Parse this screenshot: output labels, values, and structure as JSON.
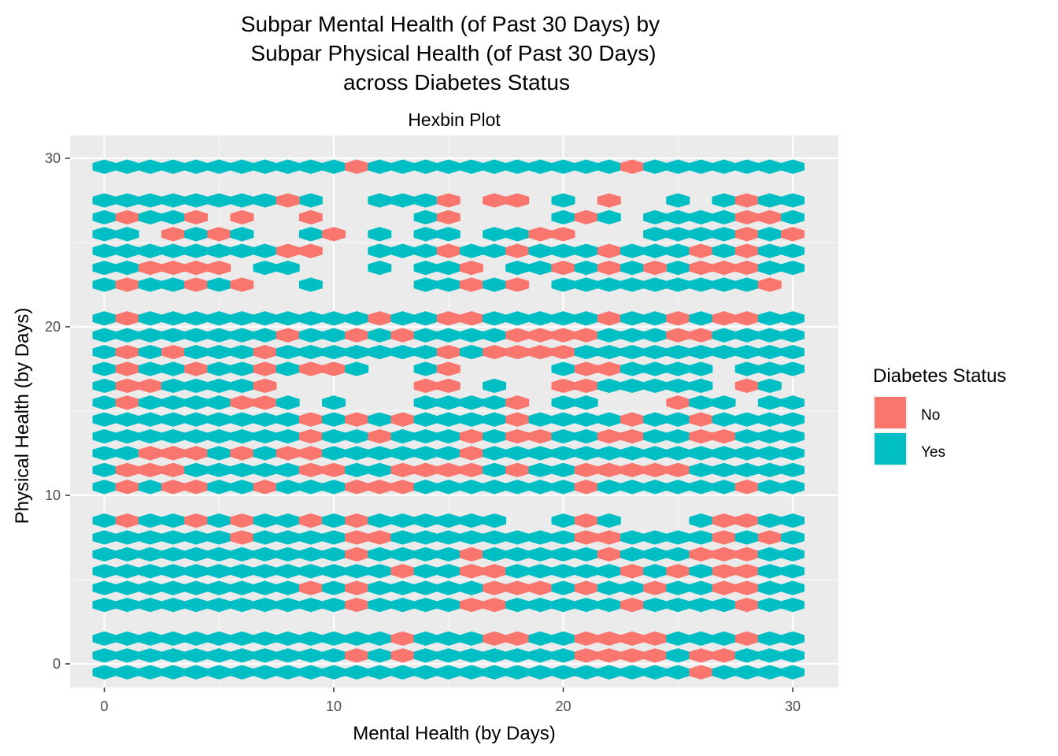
{
  "chart_data": {
    "type": "hexbin",
    "title": [
      "Subpar Mental Health (of Past 30 Days) by",
      "Subpar Physical Health (of Past 30 Days)",
      "across Diabetes Status"
    ],
    "subtitle": "Hexbin Plot",
    "xlabel": "Mental Health (by Days)",
    "ylabel": "Physical Health (by Days)",
    "xlim": [
      -1.5,
      31.5
    ],
    "ylim": [
      -1.5,
      31.5
    ],
    "x_ticks": [
      0,
      10,
      20,
      30
    ],
    "y_ticks": [
      0,
      10,
      20,
      30
    ],
    "grid": true,
    "hex_width": 1.0,
    "legend": {
      "title": "Diabetes Status",
      "position": "right",
      "entries": [
        {
          "label": "No",
          "color": "#F8766D"
        },
        {
          "label": "Yes",
          "color": "#00BFC4"
        }
      ]
    },
    "series": [
      {
        "name": "No",
        "color": "#F8766D"
      },
      {
        "name": "Yes",
        "color": "#00BFC4"
      }
    ],
    "cells": [
      {
        "y": 29.5,
        "yes": [
          [
            0,
            30
          ]
        ],
        "no": [
          11,
          23
        ]
      },
      {
        "y": 27.5,
        "yes": [
          [
            0,
            7
          ],
          [
            9,
            9
          ],
          [
            12,
            15
          ],
          [
            18,
            18
          ],
          [
            20,
            20
          ],
          [
            25,
            25
          ],
          [
            27,
            30
          ]
        ],
        "no": [
          8,
          15,
          17,
          18,
          22,
          28
        ]
      },
      {
        "y": 26.5,
        "yes": [
          [
            0,
            4
          ],
          [
            6,
            6
          ],
          [
            9,
            9
          ],
          [
            14,
            15
          ],
          [
            20,
            22
          ],
          [
            24,
            26
          ],
          [
            27,
            30
          ]
        ],
        "no": [
          1,
          4,
          6,
          9,
          15,
          21,
          28,
          29
        ]
      },
      {
        "y": 25.5,
        "yes": [
          [
            0,
            1
          ],
          [
            3,
            6
          ],
          [
            9,
            9
          ],
          [
            12,
            12
          ],
          [
            14,
            15
          ],
          [
            17,
            19
          ],
          [
            20,
            20
          ],
          [
            24,
            26
          ],
          [
            27,
            30
          ]
        ],
        "no": [
          3,
          5,
          10,
          19,
          20,
          28,
          30
        ]
      },
      {
        "y": 24.5,
        "yes": [
          [
            0,
            8
          ],
          [
            12,
            13
          ],
          [
            14,
            16
          ],
          [
            17,
            21
          ],
          [
            22,
            24
          ],
          [
            25,
            27
          ],
          [
            28,
            30
          ]
        ],
        "no": [
          8,
          9,
          15,
          18,
          22,
          26,
          28
        ]
      },
      {
        "y": 23.5,
        "yes": [
          [
            0,
            5
          ],
          [
            7,
            8
          ],
          [
            12,
            12
          ],
          [
            14,
            16
          ],
          [
            18,
            20
          ],
          [
            21,
            23
          ],
          [
            25,
            26
          ],
          [
            27,
            30
          ]
        ],
        "no": [
          2,
          3,
          4,
          5,
          16,
          20,
          22,
          24,
          26,
          27,
          28
        ]
      },
      {
        "y": 22.5,
        "yes": [
          [
            0,
            5
          ],
          [
            9,
            9
          ],
          [
            14,
            18
          ],
          [
            20,
            27
          ],
          [
            28,
            29
          ]
        ],
        "no": [
          1,
          4,
          6,
          16,
          18,
          29
        ]
      },
      {
        "y": 20.5,
        "yes": [
          [
            0,
            30
          ]
        ],
        "no": [
          1,
          12,
          15,
          16,
          22,
          25,
          27,
          28
        ]
      },
      {
        "y": 19.5,
        "yes": [
          [
            0,
            30
          ]
        ],
        "no": [
          8,
          11,
          13,
          18,
          19,
          20,
          21,
          25,
          26
        ]
      },
      {
        "y": 18.5,
        "yes": [
          [
            0,
            27
          ],
          [
            28,
            30
          ]
        ],
        "no": [
          1,
          3,
          7,
          15,
          17,
          18,
          19,
          20
        ]
      },
      {
        "y": 17.5,
        "yes": [
          [
            0,
            11
          ],
          [
            14,
            15
          ],
          [
            20,
            24
          ],
          [
            25,
            26
          ],
          [
            28,
            30
          ]
        ],
        "no": [
          1,
          4,
          7,
          9,
          10,
          15,
          21,
          22
        ]
      },
      {
        "y": 16.5,
        "yes": [
          [
            0,
            7
          ],
          [
            14,
            15
          ],
          [
            17,
            17
          ],
          [
            20,
            24
          ],
          [
            25,
            26
          ],
          [
            28,
            29
          ]
        ],
        "no": [
          1,
          2,
          7,
          14,
          15,
          20,
          21,
          28
        ]
      },
      {
        "y": 15.5,
        "yes": [
          [
            0,
            8
          ],
          [
            10,
            10
          ],
          [
            14,
            17
          ],
          [
            20,
            21
          ],
          [
            25,
            27
          ],
          [
            29,
            30
          ]
        ],
        "no": [
          1,
          6,
          7,
          18,
          25
        ]
      },
      {
        "y": 14.5,
        "yes": [
          [
            0,
            30
          ]
        ],
        "no": [
          9,
          11,
          13,
          18,
          23,
          26
        ]
      },
      {
        "y": 13.5,
        "yes": [
          [
            0,
            30
          ]
        ],
        "no": [
          9,
          12,
          16,
          18,
          19,
          22,
          23,
          26,
          27
        ]
      },
      {
        "y": 12.5,
        "yes": [
          [
            0,
            30
          ]
        ],
        "no": [
          2,
          3,
          4,
          6,
          8,
          9,
          16
        ]
      },
      {
        "y": 11.5,
        "yes": [
          [
            0,
            30
          ]
        ],
        "no": [
          1,
          2,
          3,
          9,
          10,
          13,
          14,
          15,
          16,
          18,
          21,
          22,
          23,
          24,
          25
        ]
      },
      {
        "y": 10.5,
        "yes": [
          [
            0,
            30
          ]
        ],
        "no": [
          1,
          3,
          4,
          7,
          11,
          12,
          13,
          21,
          28
        ]
      },
      {
        "y": 8.5,
        "yes": [
          [
            0,
            17
          ],
          [
            20,
            22
          ],
          [
            26,
            30
          ]
        ],
        "no": [
          1,
          4,
          6,
          9,
          11,
          21,
          27,
          28
        ]
      },
      {
        "y": 7.5,
        "yes": [
          [
            0,
            30
          ]
        ],
        "no": [
          6,
          11,
          12,
          21,
          22,
          27,
          29
        ]
      },
      {
        "y": 6.5,
        "yes": [
          [
            0,
            30
          ]
        ],
        "no": [
          11,
          16,
          22,
          26,
          27,
          28
        ]
      },
      {
        "y": 5.5,
        "yes": [
          [
            0,
            30
          ]
        ],
        "no": [
          13,
          16,
          17,
          23,
          25,
          27,
          28
        ]
      },
      {
        "y": 4.5,
        "yes": [
          [
            0,
            30
          ]
        ],
        "no": [
          9,
          11,
          17,
          18,
          19,
          21,
          24,
          27,
          28
        ]
      },
      {
        "y": 3.5,
        "yes": [
          [
            0,
            30
          ]
        ],
        "no": [
          11,
          16,
          17,
          23,
          28
        ]
      },
      {
        "y": 1.5,
        "yes": [
          [
            0,
            30
          ]
        ],
        "no": [
          13,
          17,
          18,
          21,
          22,
          23,
          24,
          28
        ]
      },
      {
        "y": 0.5,
        "yes": [
          [
            0,
            30
          ]
        ],
        "no": [
          11,
          13,
          21,
          22,
          23,
          24,
          26,
          27
        ]
      },
      {
        "y": -0.5,
        "yes": [
          [
            0,
            30
          ]
        ],
        "no": [
          26
        ]
      }
    ]
  }
}
